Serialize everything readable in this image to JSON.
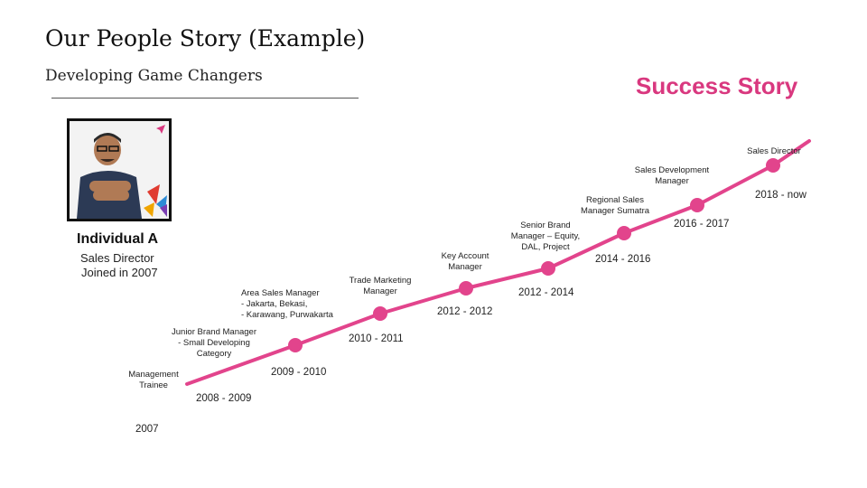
{
  "header": {
    "title": "Our People Story (Example)",
    "subtitle": "Developing Game Changers",
    "badge": "Success Story"
  },
  "person": {
    "name": "Individual A",
    "role": "Sales Director",
    "joined": "Joined in 2007"
  },
  "colors": {
    "accent": "#d9387f",
    "line": "#e2448c"
  },
  "timeline": [
    {
      "year": "2007",
      "role": [
        "Management",
        "Trainee"
      ]
    },
    {
      "year": "2008 - 2009",
      "role": [
        "Junior Brand Manager",
        "-  Small Developing",
        "Category"
      ]
    },
    {
      "year": "2009 - 2010",
      "role": [
        "Area Sales Manager",
        "-  Jakarta, Bekasi,",
        "-  Karawang, Purwakarta"
      ]
    },
    {
      "year": "2010 - 2011",
      "role": [
        "Trade Marketing",
        "Manager"
      ]
    },
    {
      "year": "2012 - 2012",
      "role": [
        "Key Account",
        "Manager"
      ]
    },
    {
      "year": "2012 - 2014",
      "role": [
        "Senior Brand",
        "Manager – Equity,",
        "DAL, Project"
      ]
    },
    {
      "year": "2014 - 2016",
      "role": [
        "Regional Sales",
        "Manager Sumatra"
      ]
    },
    {
      "year": "2016 - 2017",
      "role": [
        "Sales Development",
        "Manager"
      ]
    },
    {
      "year": "2018 - now",
      "role": [
        "Sales Director"
      ]
    }
  ]
}
